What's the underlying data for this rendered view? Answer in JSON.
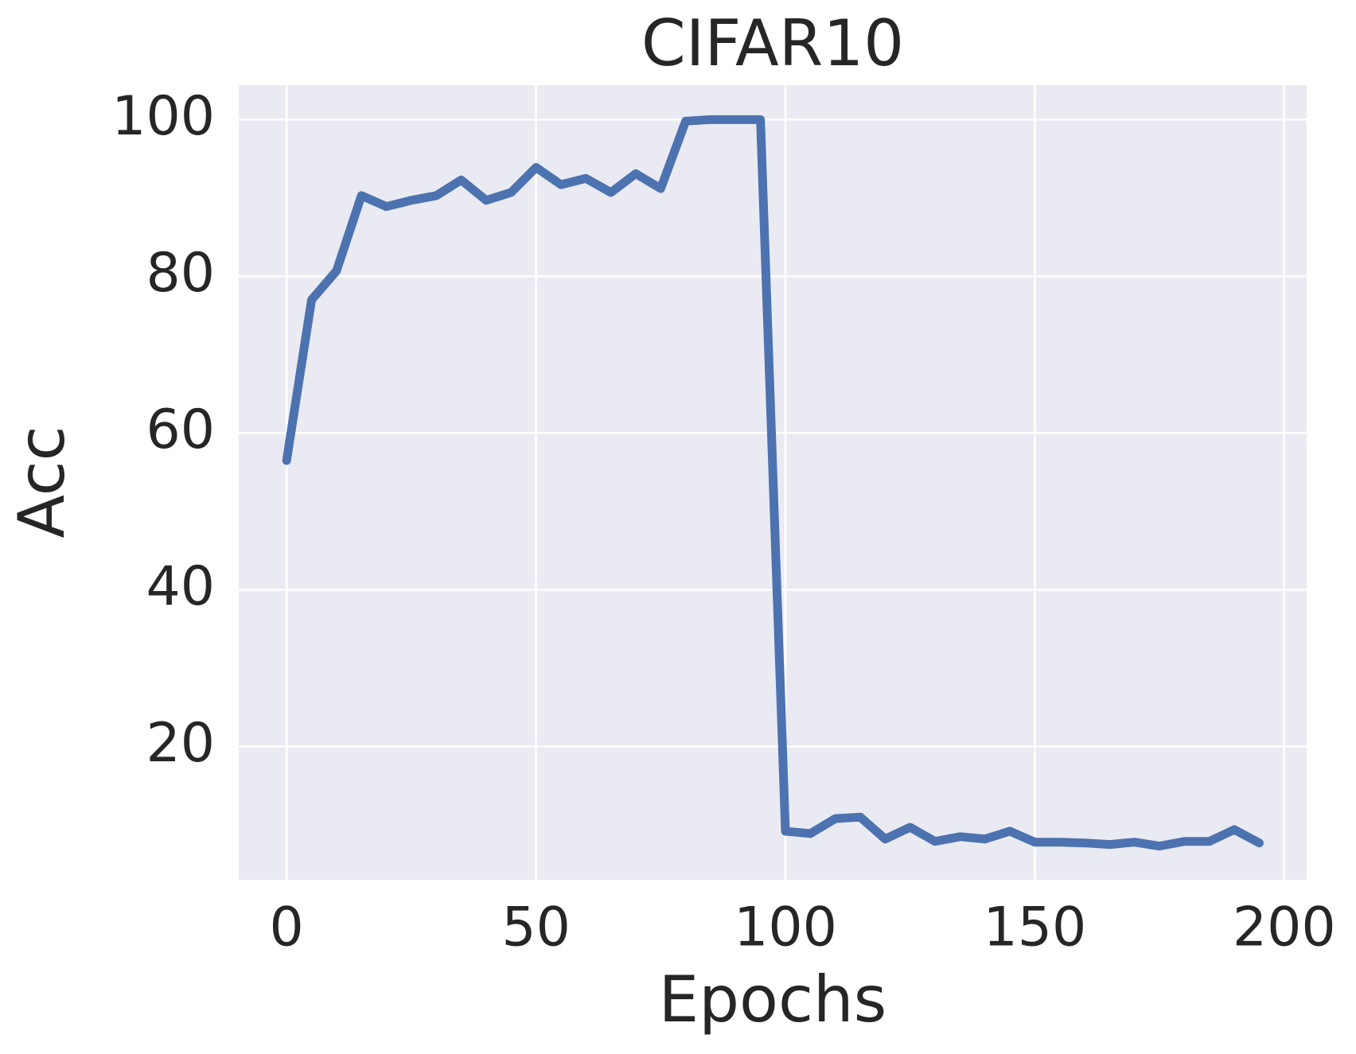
{
  "chart_data": {
    "type": "line",
    "title": "CIFAR10",
    "x_label": "Epochs",
    "y_label": "Acc",
    "x": [
      0,
      5,
      10,
      15,
      20,
      25,
      30,
      35,
      40,
      45,
      50,
      55,
      60,
      65,
      70,
      75,
      80,
      85,
      90,
      95,
      100,
      105,
      110,
      115,
      120,
      125,
      130,
      135,
      140,
      145,
      150,
      155,
      160,
      165,
      170,
      175,
      180,
      185,
      190,
      195
    ],
    "series": [
      {
        "name": "Acc",
        "color": "#4c72b0",
        "values": [
          56.5,
          77.0,
          80.7,
          90.3,
          88.9,
          89.7,
          90.3,
          92.3,
          89.7,
          90.7,
          93.9,
          91.7,
          92.5,
          90.7,
          93.1,
          91.2,
          99.8,
          100,
          100,
          100,
          9.2,
          8.9,
          10.8,
          11.0,
          8.2,
          9.7,
          7.9,
          8.5,
          8.2,
          9.2,
          7.8,
          7.8,
          7.7,
          7.5,
          7.8,
          7.3,
          7.9,
          7.9,
          9.4,
          7.7
        ]
      }
    ],
    "xlim": [
      -9.6,
      204.5
    ],
    "ylim": [
      3.0,
      104.4
    ],
    "xticks": [
      0,
      50,
      100,
      150,
      200
    ],
    "yticks": [
      20,
      40,
      60,
      80,
      100
    ],
    "grid": true
  }
}
